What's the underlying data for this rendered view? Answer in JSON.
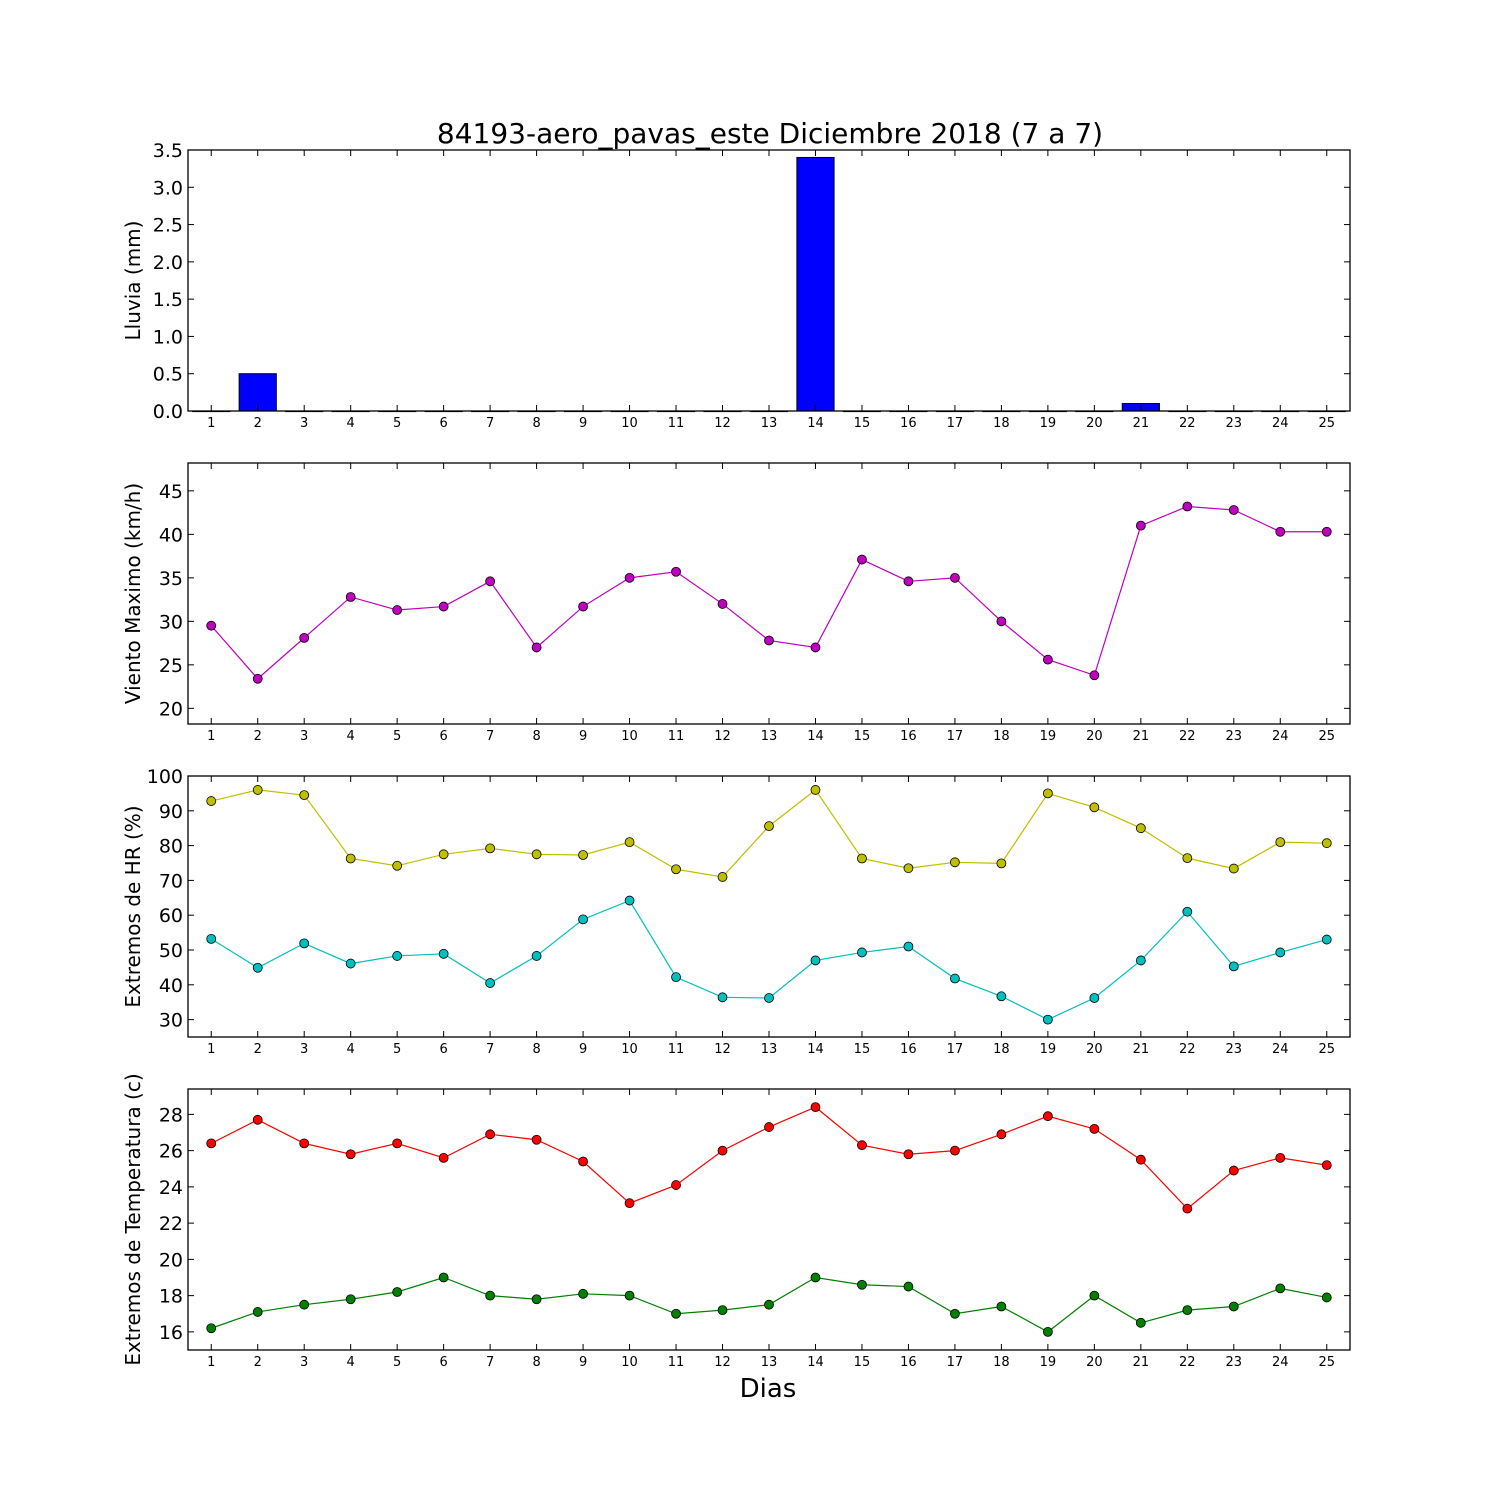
{
  "figure": {
    "title": "84193-aero_pavas_este Diciembre 2018  (7 a 7)",
    "xlabel": "Dias"
  },
  "chart_data": [
    {
      "type": "bar",
      "ylabel": "Lluvia (mm)",
      "x": [
        1,
        2,
        3,
        4,
        5,
        6,
        7,
        8,
        9,
        10,
        11,
        12,
        13,
        14,
        15,
        16,
        17,
        18,
        19,
        20,
        21,
        22,
        23,
        24,
        25
      ],
      "xlim": [
        0.5,
        25.5
      ],
      "ylim": [
        0,
        3.5
      ],
      "yticks": [
        0.0,
        0.5,
        1.0,
        1.5,
        2.0,
        2.5,
        3.0,
        3.5
      ],
      "grid": false,
      "series": [
        {
          "color": "#0000ff",
          "values": [
            0,
            0.5,
            0,
            0,
            0,
            0,
            0,
            0,
            0,
            0,
            0,
            0,
            0,
            3.4,
            0,
            0,
            0,
            0,
            0,
            0,
            0.1,
            0,
            0,
            0,
            0
          ]
        }
      ]
    },
    {
      "type": "line",
      "ylabel": "Viento Maximo (km/h)",
      "x": [
        1,
        2,
        3,
        4,
        5,
        6,
        7,
        8,
        9,
        10,
        11,
        12,
        13,
        14,
        15,
        16,
        17,
        18,
        19,
        20,
        21,
        22,
        23,
        24,
        25
      ],
      "xlim": [
        0.5,
        25.5
      ],
      "ylim": [
        18.2,
        48.2
      ],
      "yticks": [
        20,
        25,
        30,
        35,
        40,
        45
      ],
      "grid": false,
      "series": [
        {
          "color": "#bf00bf",
          "values": [
            29.5,
            23.4,
            28.1,
            32.8,
            31.3,
            31.7,
            34.6,
            27.0,
            31.7,
            35.0,
            35.7,
            32.0,
            27.8,
            27.0,
            37.1,
            34.6,
            35.0,
            30.0,
            25.6,
            23.8,
            41.0,
            43.2,
            42.8,
            40.3,
            40.3
          ]
        }
      ]
    },
    {
      "type": "line",
      "ylabel": "Extremos de HR (%)",
      "x": [
        1,
        2,
        3,
        4,
        5,
        6,
        7,
        8,
        9,
        10,
        11,
        12,
        13,
        14,
        15,
        16,
        17,
        18,
        19,
        20,
        21,
        22,
        23,
        24,
        25
      ],
      "xlim": [
        0.5,
        25.5
      ],
      "ylim": [
        25,
        100
      ],
      "yticks": [
        30,
        40,
        50,
        60,
        70,
        80,
        90,
        100
      ],
      "grid": false,
      "series": [
        {
          "color": "#bfbf00",
          "values": [
            92.8,
            96.0,
            94.5,
            76.3,
            74.2,
            77.5,
            79.2,
            77.5,
            77.3,
            81.0,
            73.2,
            71.0,
            85.6,
            96.0,
            76.3,
            73.5,
            75.2,
            74.9,
            95.0,
            91.0,
            85.0,
            76.4,
            73.4,
            81.0,
            80.7
          ]
        },
        {
          "color": "#00bfbf",
          "values": [
            53.2,
            44.9,
            51.9,
            46.1,
            48.3,
            48.9,
            40.5,
            48.3,
            58.8,
            64.2,
            42.2,
            36.4,
            36.2,
            47.0,
            49.3,
            51.0,
            41.8,
            36.7,
            30.0,
            36.2,
            47.0,
            61.0,
            45.3,
            49.3,
            53.0
          ]
        }
      ]
    },
    {
      "type": "line",
      "ylabel": "Extremos de Temperatura (c)",
      "x": [
        1,
        2,
        3,
        4,
        5,
        6,
        7,
        8,
        9,
        10,
        11,
        12,
        13,
        14,
        15,
        16,
        17,
        18,
        19,
        20,
        21,
        22,
        23,
        24,
        25
      ],
      "xlim": [
        0.5,
        25.5
      ],
      "ylim": [
        15,
        29.4
      ],
      "yticks": [
        16,
        18,
        20,
        22,
        24,
        26,
        28
      ],
      "grid": false,
      "series": [
        {
          "color": "#ff0000",
          "values": [
            26.4,
            27.7,
            26.4,
            25.8,
            26.4,
            25.6,
            26.9,
            26.6,
            25.4,
            23.1,
            24.1,
            26.0,
            27.3,
            28.4,
            26.3,
            25.8,
            26.0,
            26.9,
            27.9,
            27.2,
            25.5,
            22.8,
            24.9,
            25.6,
            25.2
          ]
        },
        {
          "color": "#008000",
          "values": [
            16.2,
            17.1,
            17.5,
            17.8,
            18.2,
            19.0,
            18.0,
            17.8,
            18.1,
            18.0,
            17.0,
            17.2,
            17.5,
            19.0,
            18.6,
            18.5,
            17.0,
            17.4,
            16.0,
            18.0,
            16.5,
            17.2,
            17.4,
            18.4,
            17.9
          ]
        }
      ]
    }
  ]
}
